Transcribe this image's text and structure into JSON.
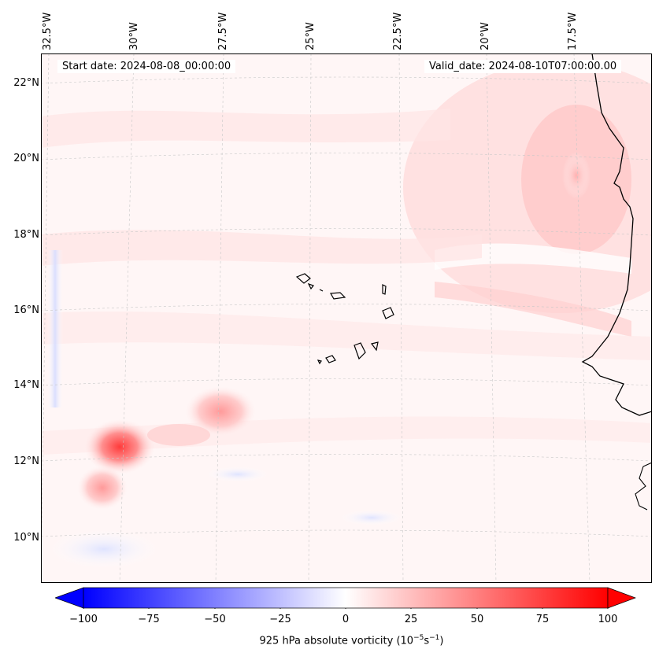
{
  "map": {
    "start_date": "Start date: 2024-08-08_00:00:00",
    "valid_date": "Valid_date: 2024-08-10T07:00:00.00",
    "lon_labels": [
      "32.5°W",
      "30°W",
      "27.5°W",
      "25°W",
      "22.5°W",
      "20°W",
      "17.5°W"
    ],
    "lat_labels": [
      "22°N",
      "20°N",
      "18°N",
      "16°N",
      "14°N",
      "12°N",
      "10°N"
    ]
  },
  "colorbar": {
    "ticks": [
      "−100",
      "−75",
      "−50",
      "−25",
      "0",
      "25",
      "50",
      "75",
      "100"
    ],
    "label_prefix": "925 hPa absolute vorticity (10",
    "label_exp1": "−5",
    "label_mid": "s",
    "label_exp2": "−1",
    "label_suffix": ")",
    "min_color": "#0000ff",
    "mid_color": "#ffffff",
    "max_color": "#ff0000"
  }
}
